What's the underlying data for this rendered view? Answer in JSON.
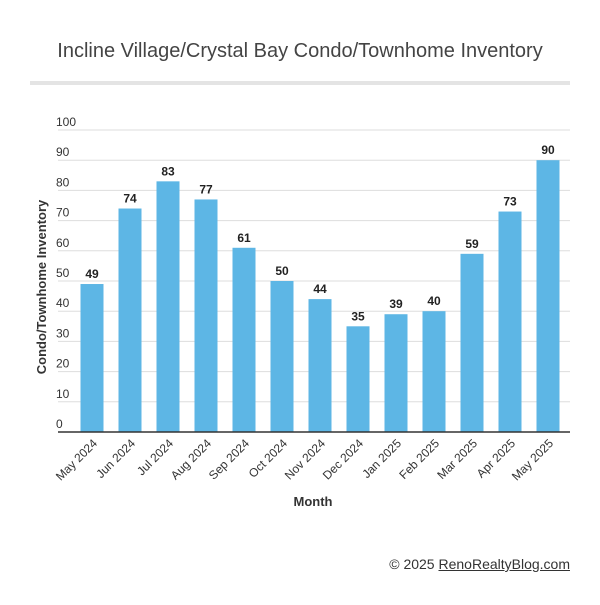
{
  "page": {
    "title": "Incline Village/Crystal Bay Condo/Townhome Inventory",
    "credit_prefix": "© 2025",
    "credit_site": "RenoRealtyBlog.com"
  },
  "chart_data": {
    "type": "bar",
    "title": "Incline Village/Crystal Bay Condo/Townhome Inventory",
    "xlabel": "Month",
    "ylabel": "Condo/Townhome Inventory",
    "categories": [
      "May 2024",
      "Jun 2024",
      "Jul 2024",
      "Aug 2024",
      "Sep 2024",
      "Oct 2024",
      "Nov 2024",
      "Dec 2024",
      "Jan 2025",
      "Feb 2025",
      "Mar 2025",
      "Apr 2025",
      "May 2025"
    ],
    "values": [
      49,
      74,
      83,
      77,
      61,
      50,
      44,
      35,
      39,
      40,
      59,
      73,
      90
    ],
    "ylim": [
      0,
      100
    ],
    "yticks": [
      0,
      10,
      20,
      30,
      40,
      50,
      60,
      70,
      80,
      90,
      100
    ],
    "grid": true,
    "data_labels": true,
    "bar_color": "#5db6e5"
  }
}
